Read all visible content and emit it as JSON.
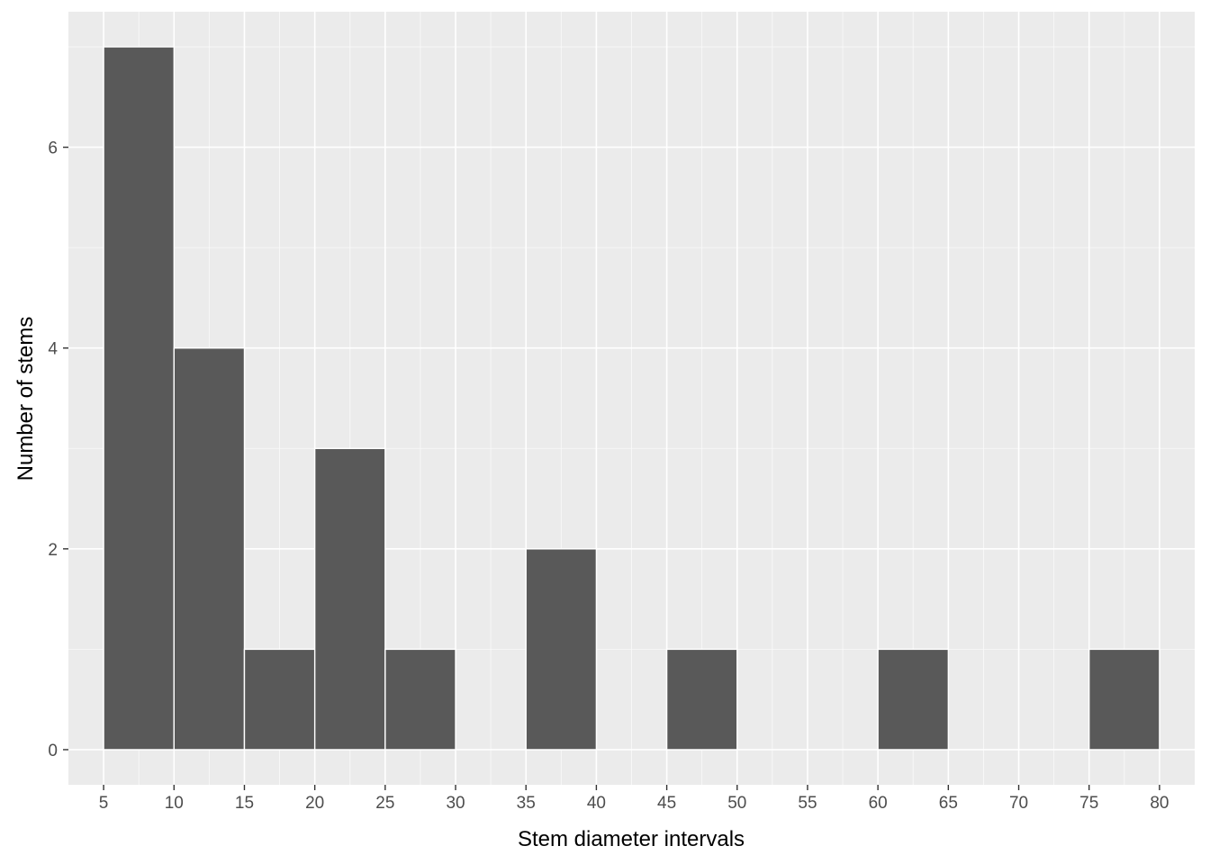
{
  "chart_data": {
    "type": "bar",
    "title": "",
    "xlabel": "Stem diameter intervals",
    "ylabel": "Number of stems",
    "xlim": [
      2.5,
      82.5
    ],
    "ylim": [
      -0.35,
      7.35
    ],
    "x_ticks": [
      5,
      10,
      15,
      20,
      25,
      30,
      35,
      40,
      45,
      50,
      55,
      60,
      65,
      70,
      75,
      80
    ],
    "x_tick_labels": [
      "5",
      "10",
      "15",
      "20",
      "25",
      "30",
      "35",
      "40",
      "45",
      "50",
      "55",
      "60",
      "65",
      "70",
      "75",
      "80"
    ],
    "y_ticks": [
      0,
      2,
      4,
      6
    ],
    "y_tick_labels": [
      "0",
      "2",
      "4",
      "6"
    ],
    "bins": [
      {
        "x0": 5,
        "x1": 10,
        "count": 7
      },
      {
        "x0": 10,
        "x1": 15,
        "count": 4
      },
      {
        "x0": 15,
        "x1": 20,
        "count": 1
      },
      {
        "x0": 20,
        "x1": 25,
        "count": 3
      },
      {
        "x0": 25,
        "x1": 30,
        "count": 1
      },
      {
        "x0": 35,
        "x1": 40,
        "count": 2
      },
      {
        "x0": 45,
        "x1": 50,
        "count": 1
      },
      {
        "x0": 60,
        "x1": 65,
        "count": 1
      },
      {
        "x0": 75,
        "x1": 80,
        "count": 1
      }
    ],
    "grid": true,
    "colors": {
      "panel_background": "#EBEBEB",
      "grid_major": "#FFFFFF",
      "bar_fill": "#595959",
      "bar_outline": "#FFFFFF",
      "tick_mark": "#333333",
      "tick_text": "#4D4D4D"
    }
  }
}
